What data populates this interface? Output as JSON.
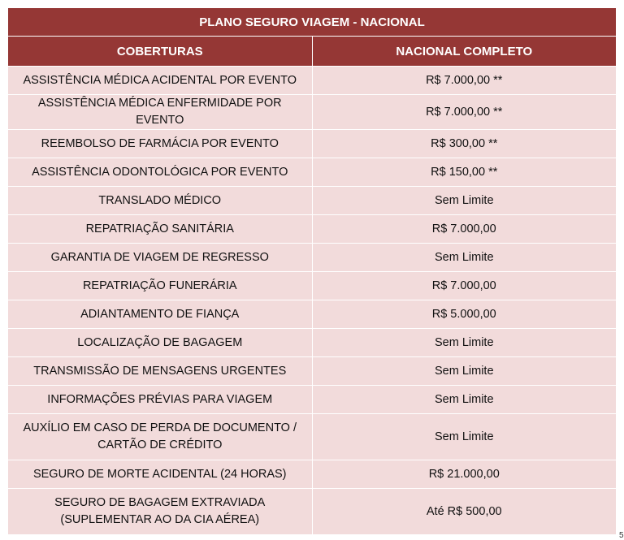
{
  "title": "PLANO SEGURO VIAGEM - NACIONAL",
  "columns": [
    "COBERTURAS",
    "NACIONAL COMPLETO"
  ],
  "rows": [
    {
      "cobertura": "ASSISTÊNCIA MÉDICA ACIDENTAL POR EVENTO",
      "valor": "R$ 7.000,00 **"
    },
    {
      "cobertura": "ASSISTÊNCIA MÉDICA ENFERMIDADE POR EVENTO",
      "valor": "R$ 7.000,00 **"
    },
    {
      "cobertura": "REEMBOLSO DE FARMÁCIA POR EVENTO",
      "valor": "R$ 300,00 **"
    },
    {
      "cobertura": "ASSISTÊNCIA ODONTOLÓGICA POR EVENTO",
      "valor": "R$ 150,00 **"
    },
    {
      "cobertura": "TRANSLADO MÉDICO",
      "valor": "Sem Limite"
    },
    {
      "cobertura": "REPATRIAÇÃO SANITÁRIA",
      "valor": "R$ 7.000,00"
    },
    {
      "cobertura": "GARANTIA DE VIAGEM DE REGRESSO",
      "valor": "Sem Limite"
    },
    {
      "cobertura": "REPATRIAÇÃO FUNERÁRIA",
      "valor": "R$ 7.000,00"
    },
    {
      "cobertura": "ADIANTAMENTO DE FIANÇA",
      "valor": "R$ 5.000,00"
    },
    {
      "cobertura": "LOCALIZAÇÃO DE BAGAGEM",
      "valor": "Sem Limite"
    },
    {
      "cobertura": "TRANSMISSÃO DE MENSAGENS URGENTES",
      "valor": "Sem Limite"
    },
    {
      "cobertura": "INFORMAÇÕES PRÉVIAS PARA VIAGEM",
      "valor": "Sem Limite"
    },
    {
      "cobertura": "AUXÍLIO EM CASO DE PERDA DE DOCUMENTO / CARTÃO DE CRÉDITO",
      "valor": "Sem Limite"
    },
    {
      "cobertura": "SEGURO DE MORTE ACIDENTAL (24 HORAS)",
      "valor": "R$ 21.000,00"
    },
    {
      "cobertura": "SEGURO DE BAGAGEM EXTRAVIADA (SUPLEMENTAR AO DA CIA AÉREA)",
      "valor": "Até R$ 500,00"
    }
  ],
  "page_number": "5",
  "colors": {
    "header_bg": "#953735",
    "row_bg": "#f2dbdb"
  }
}
